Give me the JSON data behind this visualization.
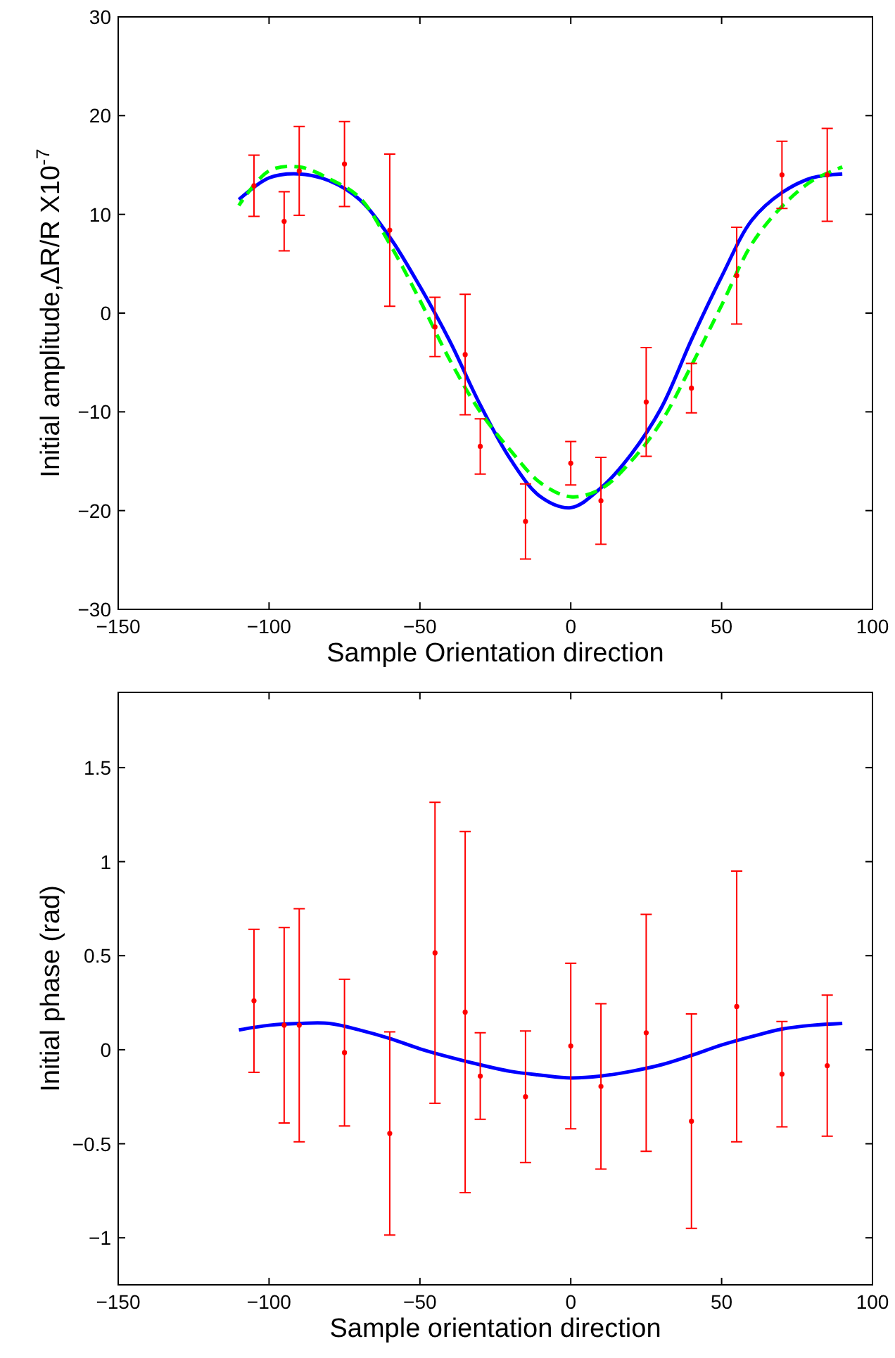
{
  "chart_data": [
    {
      "type": "scatter",
      "xlabel": "Sample Orientation direction",
      "ylabel": "Initial amplitude,ΔR/R X10$^{-7}$",
      "xlim": [
        -150,
        100
      ],
      "xticks": [
        -150,
        -100,
        -50,
        0,
        50,
        100
      ],
      "ylim": [
        -30,
        30
      ],
      "yticks": [
        -30,
        -20,
        -10,
        0,
        10,
        20,
        30
      ],
      "grid": false,
      "series": [
        {
          "type": "scatter",
          "color": "#ff0000",
          "marker": "circle",
          "x": [
            -105,
            -95,
            -90,
            -75,
            -60,
            -45,
            -35,
            -30,
            -15,
            0,
            10,
            25,
            40,
            55,
            70,
            85
          ],
          "values": [
            12.9,
            9.3,
            14.4,
            15.1,
            8.4,
            -1.4,
            -4.2,
            -13.5,
            -21.1,
            -15.2,
            -19.0,
            -9.0,
            -7.6,
            3.8,
            14.0,
            14.0
          ],
          "errors": [
            3.1,
            3,
            4.5,
            4.3,
            7.7,
            3,
            6.1,
            2.8,
            3.8,
            2.2,
            4.4,
            5.5,
            2.5,
            4.9,
            3.4,
            4.7
          ]
        },
        {
          "type": "line",
          "color": "#0000ff",
          "line_style": "solid",
          "marker": "none",
          "x": [
            -110,
            -100,
            -90,
            -80,
            -70,
            -60,
            -50,
            -40,
            -30,
            -20,
            -10,
            0,
            10,
            20,
            30,
            40,
            50,
            60,
            70,
            80,
            90
          ],
          "values": [
            11.5,
            13.7,
            14.1,
            13.4,
            11.5,
            7.7,
            2.7,
            -2.9,
            -9.3,
            -14.8,
            -18.6,
            -19.7,
            -17.7,
            -14.3,
            -9.6,
            -2.7,
            3.7,
            9.4,
            12.2,
            13.7,
            14.1
          ]
        },
        {
          "type": "line",
          "color": "#00ff00",
          "line_style": "dashed",
          "marker": "none",
          "x": [
            -110,
            -100,
            -90,
            -80,
            -70,
            -60,
            -50,
            -40,
            -30,
            -20,
            -10,
            0,
            10,
            20,
            30,
            40,
            50,
            60,
            70,
            80,
            90
          ],
          "values": [
            10.9,
            14.4,
            14.8,
            13.6,
            11.7,
            7.0,
            1.3,
            -4.8,
            -10.0,
            -13.9,
            -17.2,
            -18.6,
            -17.8,
            -15.0,
            -11.0,
            -5.3,
            0.8,
            7.0,
            10.8,
            13.4,
            14.8
          ]
        }
      ]
    },
    {
      "type": "scatter",
      "xlabel": "Sample orientation direction",
      "ylabel": "Initial phase (rad)",
      "xlim": [
        -150,
        100
      ],
      "xticks": [
        -150,
        -100,
        -50,
        0,
        50,
        100
      ],
      "ylim": [
        -1.25,
        1.9
      ],
      "yticks": [
        -1,
        -0.5,
        0,
        0.5,
        1,
        1.5
      ],
      "grid": false,
      "series": [
        {
          "type": "scatter",
          "color": "#ff0000",
          "marker": "circle",
          "x": [
            -105,
            -95,
            -90,
            -75,
            -60,
            -45,
            -35,
            -30,
            -15,
            0,
            10,
            25,
            40,
            55,
            70,
            85
          ],
          "values": [
            0.26,
            0.13,
            0.13,
            -0.015,
            -0.445,
            0.515,
            0.2,
            -0.14,
            -0.25,
            0.02,
            -0.195,
            0.09,
            -0.38,
            0.23,
            -0.13,
            -0.085
          ],
          "errors": [
            0.38,
            0.52,
            0.62,
            0.39,
            0.54,
            0.8,
            0.96,
            0.23,
            0.35,
            0.44,
            0.44,
            0.63,
            0.57,
            0.72,
            0.28,
            0.375
          ]
        },
        {
          "type": "line",
          "color": "#0000ff",
          "line_style": "solid",
          "marker": "none",
          "x": [
            -110,
            -100,
            -90,
            -80,
            -70,
            -60,
            -50,
            -40,
            -30,
            -20,
            -10,
            0,
            10,
            20,
            30,
            40,
            50,
            60,
            70,
            80,
            90
          ],
          "values": [
            0.105,
            0.13,
            0.14,
            0.14,
            0.105,
            0.06,
            0.005,
            -0.04,
            -0.08,
            -0.115,
            -0.135,
            -0.15,
            -0.14,
            -0.115,
            -0.08,
            -0.03,
            0.025,
            0.07,
            0.11,
            0.13,
            0.14
          ]
        }
      ]
    }
  ]
}
